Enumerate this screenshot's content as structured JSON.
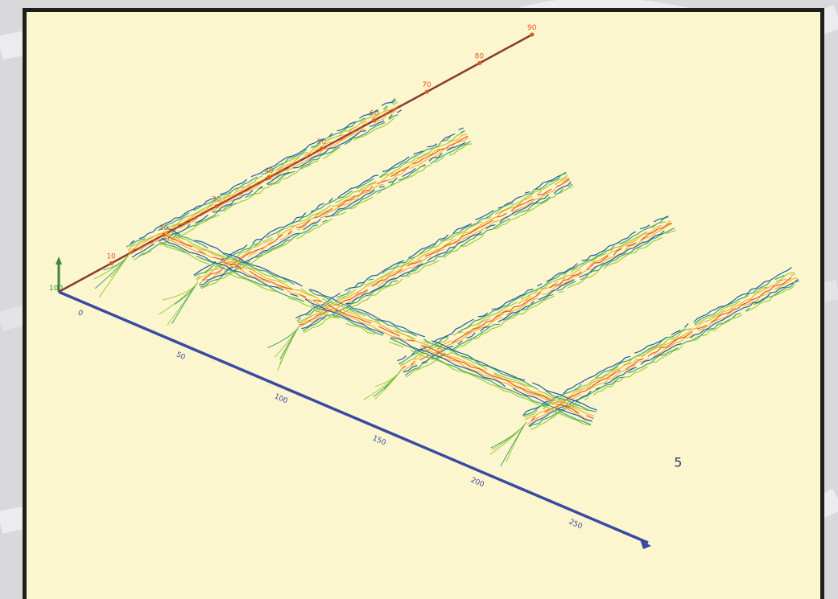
{
  "chart_data": {
    "type": "scatter",
    "title": "",
    "view": "3d-perspective",
    "axes": {
      "depth_axis": {
        "color": "#8a3a2e",
        "tick_labels": [
          "10",
          "20",
          "30",
          "40",
          "50",
          "60",
          "70",
          "80",
          "90"
        ]
      },
      "length_axis": {
        "color": "#3a4aa0",
        "tick_labels": [
          "0",
          "50",
          "100",
          "150",
          "200",
          "250"
        ]
      },
      "vertical_axis": {
        "color": "#3a8a3a",
        "label": "100"
      }
    },
    "color_scale": [
      "#1f5aa8",
      "#3aa36b",
      "#9ccc3a",
      "#f0b03a",
      "#e8541e"
    ],
    "series": [
      {
        "values": [
          [
            0,
            15
          ],
          [
            0,
            72
          ]
        ]
      },
      {
        "values": [
          [
            30,
            15
          ],
          [
            30,
            72
          ]
        ]
      },
      {
        "values": [
          [
            75,
            15
          ],
          [
            75,
            72
          ]
        ]
      },
      {
        "values": [
          [
            120,
            15
          ],
          [
            120,
            72
          ]
        ]
      },
      {
        "values": [
          [
            175,
            15
          ],
          [
            175,
            72
          ]
        ]
      },
      {
        "values": [
          [
            0,
            22
          ],
          [
            190,
            22
          ]
        ]
      }
    ],
    "annotation": "5"
  }
}
